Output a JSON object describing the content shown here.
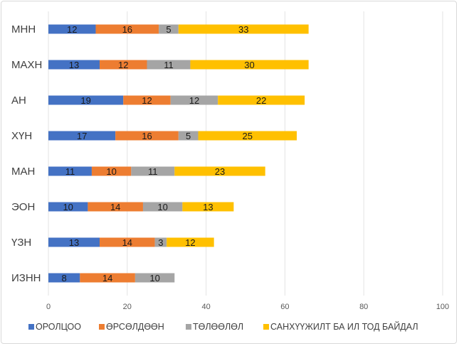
{
  "chart_data": {
    "type": "bar",
    "orientation": "horizontal",
    "stacked": true,
    "title": "",
    "xlabel": "",
    "ylabel": "",
    "categories": [
      "МНН",
      "МАХН",
      "АН",
      "ХҮН",
      "МАН",
      "ЭОН",
      "ҮЗН",
      "ИЗНН"
    ],
    "xlim": [
      0,
      100
    ],
    "xticks": [
      0,
      20,
      40,
      60,
      80,
      100
    ],
    "grid": true,
    "legend_position": "bottom",
    "series": [
      {
        "name": "ОРОЛЦОО",
        "color": "#4472c4",
        "values": [
          12,
          13,
          19,
          17,
          11,
          10,
          13,
          8
        ]
      },
      {
        "name": "ӨРСӨЛДӨӨН",
        "color": "#ed7d31",
        "values": [
          16,
          12,
          12,
          16,
          10,
          14,
          14,
          14
        ]
      },
      {
        "name": "ТӨЛӨӨЛӨЛ",
        "color": "#a5a5a5",
        "values": [
          5,
          11,
          12,
          5,
          11,
          10,
          3,
          10
        ]
      },
      {
        "name": "САНХҮҮЖИЛТ БА ИЛ ТОД БАЙДАЛ",
        "color": "#ffc000",
        "values": [
          33,
          30,
          22,
          25,
          23,
          13,
          12,
          null
        ]
      }
    ]
  }
}
